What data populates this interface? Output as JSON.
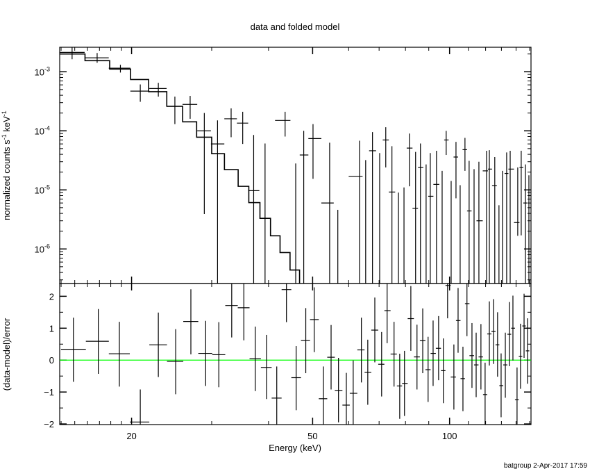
{
  "chart_data": [
    {
      "type": "scatter",
      "panel": "top",
      "title": "data and folded model",
      "xlabel": "Energy (keV)",
      "ylabel": "normalized counts s",
      "ylabel_exp1": "-1",
      "ylabel_mid": " keV",
      "ylabel_exp2": "-1",
      "xscale": "log",
      "yscale": "log",
      "xlim": [
        13.9,
        151
      ],
      "ylim": [
        2.6e-07,
        0.0026
      ],
      "yticks": [
        {
          "value": 0.001,
          "base": "10",
          "exp": "-3"
        },
        {
          "value": 0.0001,
          "base": "10",
          "exp": "-4"
        },
        {
          "value": 1e-05,
          "base": "10",
          "exp": "-5"
        },
        {
          "value": 1e-06,
          "base": "10",
          "exp": "-6"
        }
      ],
      "data_columns": [
        "energy_keV",
        "y",
        "y_low",
        "y_high"
      ],
      "data": [
        [
          14.8,
          0.00213,
          0.00163,
          0.0028
        ],
        [
          16.8,
          0.00172,
          0.00142,
          0.00208
        ],
        [
          18.9,
          0.00115,
          0.00097,
          0.00131
        ],
        [
          20.9,
          0.00047,
          0.00031,
          0.00061
        ],
        [
          22.9,
          0.00052,
          0.00038,
          0.00065
        ],
        [
          24.9,
          0.00026,
          0.00013,
          0.00038
        ],
        [
          26.9,
          0.00028,
          0.00016,
          0.00039
        ],
        [
          28.9,
          0.0001,
          3.9e-06,
          0.0002
        ],
        [
          30.9,
          6e-05,
          null,
          0.00015
        ],
        [
          33.1,
          0.00016,
          7.8e-05,
          0.00024
        ],
        [
          35.1,
          0.000135,
          6e-05,
          0.00021
        ],
        [
          37.1,
          9.7e-06,
          null,
          8.5e-05
        ],
        [
          39.3,
          null,
          null,
          6.1e-05
        ],
        [
          43.5,
          0.00015,
          8e-05,
          0.00021
        ],
        [
          45.9,
          null,
          null,
          2.8e-05
        ],
        [
          47.8,
          3.9e-05,
          null,
          0.0001
        ],
        [
          50.1,
          7.4e-05,
          1.54e-05,
          0.00013
        ],
        [
          54.5,
          6e-06,
          null,
          6.3e-05
        ],
        [
          56.8,
          null,
          null,
          4.6e-06
        ],
        [
          63.4,
          1.7e-05,
          null,
          6.8e-05
        ],
        [
          65.4,
          null,
          null,
          3.2e-05
        ],
        [
          67.7,
          4.6e-05,
          null,
          9.5e-05
        ],
        [
          70.2,
          null,
          null,
          4.2e-05
        ],
        [
          72.4,
          7e-05,
          2.4e-05,
          0.000115
        ],
        [
          74.7,
          9.2e-06,
          null,
          5.5e-05
        ],
        [
          77.2,
          null,
          null,
          9e-06
        ],
        [
          79.4,
          null,
          null,
          1.1e-05
        ],
        [
          81.6,
          5.1e-05,
          1.15e-05,
          9e-05
        ],
        [
          84.2,
          4.9e-06,
          null,
          4.4e-05
        ],
        [
          86.3,
          2.4e-05,
          null,
          6.1e-05
        ],
        [
          88.8,
          null,
          null,
          2.7e-05
        ],
        [
          90.7,
          7.8e-06,
          null,
          4.2e-05
        ],
        [
          93.6,
          1.24e-05,
          null,
          4.6e-05
        ],
        [
          96.3,
          null,
          null,
          2.1e-05
        ],
        [
          98.3,
          7e-05,
          3.9e-05,
          0.0001
        ],
        [
          100.8,
          null,
          null,
          1.42e-05
        ],
        [
          103.3,
          3.6e-05,
          7.2e-06,
          6.5e-05
        ],
        [
          105.5,
          null,
          null,
          1.2e-05
        ],
        [
          108.1,
          4.8e-05,
          2.1e-05,
          7.6e-05
        ],
        [
          110.4,
          4.4e-06,
          null,
          3.1e-05
        ],
        [
          113.2,
          null,
          null,
          2.25e-05
        ],
        [
          116.0,
          3e-06,
          null,
          3e-05
        ],
        [
          120.6,
          2.1e-05,
          null,
          4.6e-05
        ],
        [
          122.3,
          2.25e-05,
          null,
          4.7e-05
        ],
        [
          125.7,
          1.18e-05,
          null,
          3.6e-05
        ],
        [
          128.4,
          null,
          null,
          5.5e-06
        ],
        [
          130.7,
          null,
          null,
          2.1e-05
        ],
        [
          133.5,
          1.9e-05,
          null,
          4.3e-05
        ],
        [
          135.9,
          2.25e-05,
          null,
          4.6e-05
        ],
        [
          141.2,
          2.8e-06,
          1.67e-06,
          2.4e-05
        ],
        [
          143.7,
          2.4e-05,
          1.7e-06,
          4.6e-05
        ],
        [
          146.8,
          6e-06,
          null,
          2.7e-05
        ],
        [
          149.4,
          null,
          null,
          1.77e-05
        ]
      ],
      "model": {
        "edges": [
          13.9,
          15.8,
          17.9,
          19.9,
          21.8,
          23.9,
          25.9,
          27.8,
          30.0,
          32.0,
          34.3,
          36.2,
          38.3,
          40.4,
          42.4,
          44.6,
          46.8
        ],
        "values": [
          0.002,
          0.00154,
          0.00111,
          0.00074,
          0.00046,
          0.00026,
          0.000142,
          7.8e-05,
          4.1e-05,
          2.2e-05,
          1.15e-05,
          6.1e-06,
          3.3e-06,
          1.67e-06,
          8.7e-07,
          4.4e-07
        ]
      }
    },
    {
      "type": "scatter",
      "panel": "bottom",
      "xlabel": "Energy (keV)",
      "ylabel": "(data-model)/error",
      "xscale": "log",
      "xlim": [
        13.9,
        151
      ],
      "ylim": [
        -2.02,
        2.4
      ],
      "xticks": [
        {
          "value": 20,
          "label": "20"
        },
        {
          "value": 50,
          "label": "50"
        },
        {
          "value": 100,
          "label": "100"
        }
      ],
      "yticks": [
        {
          "value": -2,
          "label": "−2"
        },
        {
          "value": -1,
          "label": "−1"
        },
        {
          "value": 0,
          "label": "0"
        },
        {
          "value": 1,
          "label": "1"
        },
        {
          "value": 2,
          "label": "2"
        }
      ],
      "zero_line_color": "#00ff00",
      "data_columns": [
        "energy_keV",
        "residual",
        "low",
        "high"
      ],
      "data": [
        [
          14.9,
          0.34,
          -0.68,
          1.33
        ],
        [
          16.9,
          0.59,
          -0.43,
          1.6
        ],
        [
          18.8,
          0.2,
          -0.83,
          1.2
        ],
        [
          20.9,
          -1.94,
          null,
          -0.92
        ],
        [
          22.9,
          0.48,
          -0.53,
          1.49
        ],
        [
          25.0,
          -0.04,
          -1.07,
          0.97
        ],
        [
          27.0,
          1.21,
          0.18,
          2.22
        ],
        [
          29.1,
          0.21,
          -0.81,
          1.23
        ],
        [
          31.1,
          0.17,
          -0.85,
          1.19
        ],
        [
          33.2,
          1.71,
          0.71,
          null
        ],
        [
          35.3,
          1.64,
          0.62,
          null
        ],
        [
          37.4,
          0.04,
          -0.97,
          1.05
        ],
        [
          39.6,
          -0.23,
          -1.22,
          0.79
        ],
        [
          41.7,
          -1.19,
          null,
          -0.2
        ],
        [
          43.8,
          2.21,
          1.19,
          null
        ],
        [
          46.0,
          -0.55,
          -1.57,
          0.44
        ],
        [
          48.3,
          0.62,
          -0.41,
          1.63
        ],
        [
          50.4,
          1.27,
          0.25,
          2.28
        ],
        [
          52.8,
          -1.21,
          null,
          -0.2
        ],
        [
          54.9,
          0.09,
          -0.92,
          1.1
        ],
        [
          57.0,
          -0.95,
          -1.95,
          0.07
        ],
        [
          59.3,
          -1.41,
          null,
          -0.4
        ],
        [
          61.4,
          -1.04,
          null,
          -0.01
        ],
        [
          64.0,
          0.32,
          -0.7,
          1.33
        ],
        [
          66.1,
          -0.38,
          -1.4,
          0.64
        ],
        [
          68.5,
          0.94,
          -0.07,
          1.96
        ],
        [
          70.9,
          -0.13,
          -1.14,
          0.88
        ],
        [
          72.9,
          1.55,
          0.53,
          null
        ],
        [
          75.5,
          0.19,
          -0.83,
          1.2
        ],
        [
          77.7,
          -0.81,
          -1.84,
          0.2
        ],
        [
          79.6,
          -0.73,
          -1.75,
          0.29
        ],
        [
          82.2,
          1.3,
          0.29,
          2.32
        ],
        [
          84.8,
          0.1,
          -0.92,
          1.11
        ],
        [
          87.3,
          0.61,
          -0.41,
          1.62
        ],
        [
          89.7,
          -0.3,
          -1.31,
          0.73
        ],
        [
          92.0,
          0.21,
          -0.81,
          1.24
        ],
        [
          94.6,
          0.37,
          -0.63,
          1.38
        ],
        [
          96.9,
          -0.33,
          -1.35,
          0.68
        ],
        [
          99.0,
          2.34,
          1.31,
          null
        ],
        [
          102.2,
          -0.53,
          -1.55,
          0.49
        ],
        [
          104.4,
          1.24,
          0.23,
          2.26
        ],
        [
          107.0,
          -0.58,
          -1.6,
          0.42
        ],
        [
          109.2,
          1.77,
          0.75,
          null
        ],
        [
          112.0,
          0.14,
          -0.87,
          1.16
        ],
        [
          114.4,
          -0.15,
          -1.16,
          0.86
        ],
        [
          117.2,
          0.1,
          -0.92,
          1.13
        ],
        [
          119.7,
          -1.08,
          null,
          -0.08
        ],
        [
          122.3,
          0.82,
          -0.17,
          1.84
        ],
        [
          124.9,
          0.9,
          -0.12,
          1.91
        ],
        [
          127.5,
          0.48,
          -0.52,
          1.5
        ],
        [
          129.8,
          -0.8,
          -1.79,
          0.21
        ],
        [
          132.6,
          -0.15,
          -1.18,
          0.86
        ],
        [
          135.4,
          0.81,
          -0.19,
          1.82
        ],
        [
          137.8,
          1.0,
          -0.01,
          2.02
        ],
        [
          140.7,
          -1.24,
          null,
          -0.23
        ],
        [
          143.2,
          0.12,
          -0.9,
          1.14
        ],
        [
          145.8,
          1.07,
          0.07,
          2.08
        ],
        [
          148.4,
          0.29,
          -0.74,
          1.31
        ]
      ]
    }
  ],
  "footer": "batgroup  2-Apr-2017 17:59"
}
